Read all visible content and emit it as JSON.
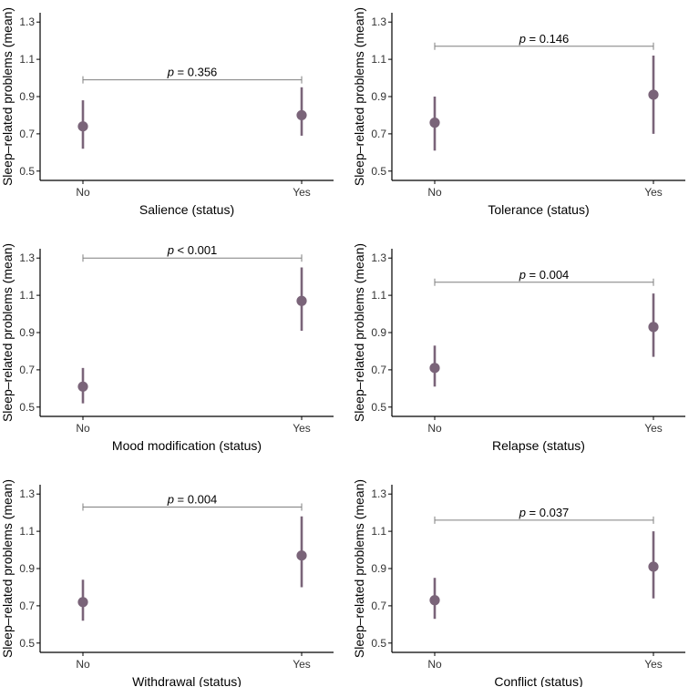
{
  "figure": {
    "y_axis_label": "Sleep–related problems (mean)",
    "colors": {
      "point": "#7a6479",
      "bracket": "#7f7f7f",
      "axis": "#000000"
    }
  },
  "chart_data": [
    {
      "type": "scatter",
      "panel": "salience",
      "xlabel": "Salience (status)",
      "ylabel": "Sleep–related problems (mean)",
      "categories": [
        "No",
        "Yes"
      ],
      "values": [
        0.74,
        0.8
      ],
      "ci_low": [
        0.62,
        0.69
      ],
      "ci_high": [
        0.88,
        0.95
      ],
      "p_label": "p = 0.356",
      "bracket_y": 0.99,
      "ylim": [
        0.45,
        1.35
      ],
      "yticks": [
        0.5,
        0.7,
        0.9,
        1.1,
        1.3
      ],
      "ytick_labels": [
        "0.5",
        "0.7",
        "0.9",
        "1.1",
        "1.3"
      ]
    },
    {
      "type": "scatter",
      "panel": "tolerance",
      "xlabel": "Tolerance (status)",
      "ylabel": "Sleep–related problems (mean)",
      "categories": [
        "No",
        "Yes"
      ],
      "values": [
        0.76,
        0.91
      ],
      "ci_low": [
        0.61,
        0.7
      ],
      "ci_high": [
        0.9,
        1.12
      ],
      "p_label": "p = 0.146",
      "bracket_y": 1.17,
      "ylim": [
        0.45,
        1.35
      ],
      "yticks": [
        0.5,
        0.7,
        0.9,
        1.1,
        1.3
      ],
      "ytick_labels": [
        "0.5",
        "0.7",
        "0.9",
        "1.1",
        "1.3"
      ]
    },
    {
      "type": "scatter",
      "panel": "mood-modification",
      "xlabel": "Mood modification (status)",
      "ylabel": "Sleep–related problems (mean)",
      "categories": [
        "No",
        "Yes"
      ],
      "values": [
        0.61,
        1.07
      ],
      "ci_low": [
        0.52,
        0.91
      ],
      "ci_high": [
        0.71,
        1.25
      ],
      "p_label": "p < 0.001",
      "bracket_y": 1.3,
      "ylim": [
        0.45,
        1.35
      ],
      "yticks": [
        0.5,
        0.7,
        0.9,
        1.1,
        1.3
      ],
      "ytick_labels": [
        "0.5",
        "0.7",
        "0.9",
        "1.1",
        "1.3"
      ]
    },
    {
      "type": "scatter",
      "panel": "relapse",
      "xlabel": "Relapse (status)",
      "ylabel": "Sleep–related problems (mean)",
      "categories": [
        "No",
        "Yes"
      ],
      "values": [
        0.71,
        0.93
      ],
      "ci_low": [
        0.61,
        0.77
      ],
      "ci_high": [
        0.83,
        1.11
      ],
      "p_label": "p = 0.004",
      "bracket_y": 1.17,
      "ylim": [
        0.45,
        1.35
      ],
      "yticks": [
        0.5,
        0.7,
        0.9,
        1.1,
        1.3
      ],
      "ytick_labels": [
        "0.5",
        "0.7",
        "0.9",
        "1.1",
        "1.3"
      ]
    },
    {
      "type": "scatter",
      "panel": "withdrawal",
      "xlabel": "Withdrawal (status)",
      "ylabel": "Sleep–related problems (mean)",
      "categories": [
        "No",
        "Yes"
      ],
      "values": [
        0.72,
        0.97
      ],
      "ci_low": [
        0.62,
        0.8
      ],
      "ci_high": [
        0.84,
        1.18
      ],
      "p_label": "p = 0.004",
      "bracket_y": 1.23,
      "ylim": [
        0.45,
        1.35
      ],
      "yticks": [
        0.5,
        0.7,
        0.9,
        1.1,
        1.3
      ],
      "ytick_labels": [
        "0.5",
        "0.7",
        "0.9",
        "1.1",
        "1.3"
      ]
    },
    {
      "type": "scatter",
      "panel": "conflict",
      "xlabel": "Conflict (status)",
      "ylabel": "Sleep–related problems (mean)",
      "categories": [
        "No",
        "Yes"
      ],
      "values": [
        0.73,
        0.91
      ],
      "ci_low": [
        0.63,
        0.74
      ],
      "ci_high": [
        0.85,
        1.1
      ],
      "p_label": "p = 0.037",
      "bracket_y": 1.16,
      "ylim": [
        0.45,
        1.35
      ],
      "yticks": [
        0.5,
        0.7,
        0.9,
        1.1,
        1.3
      ],
      "ytick_labels": [
        "0.5",
        "0.7",
        "0.9",
        "1.1",
        "1.3"
      ]
    }
  ]
}
